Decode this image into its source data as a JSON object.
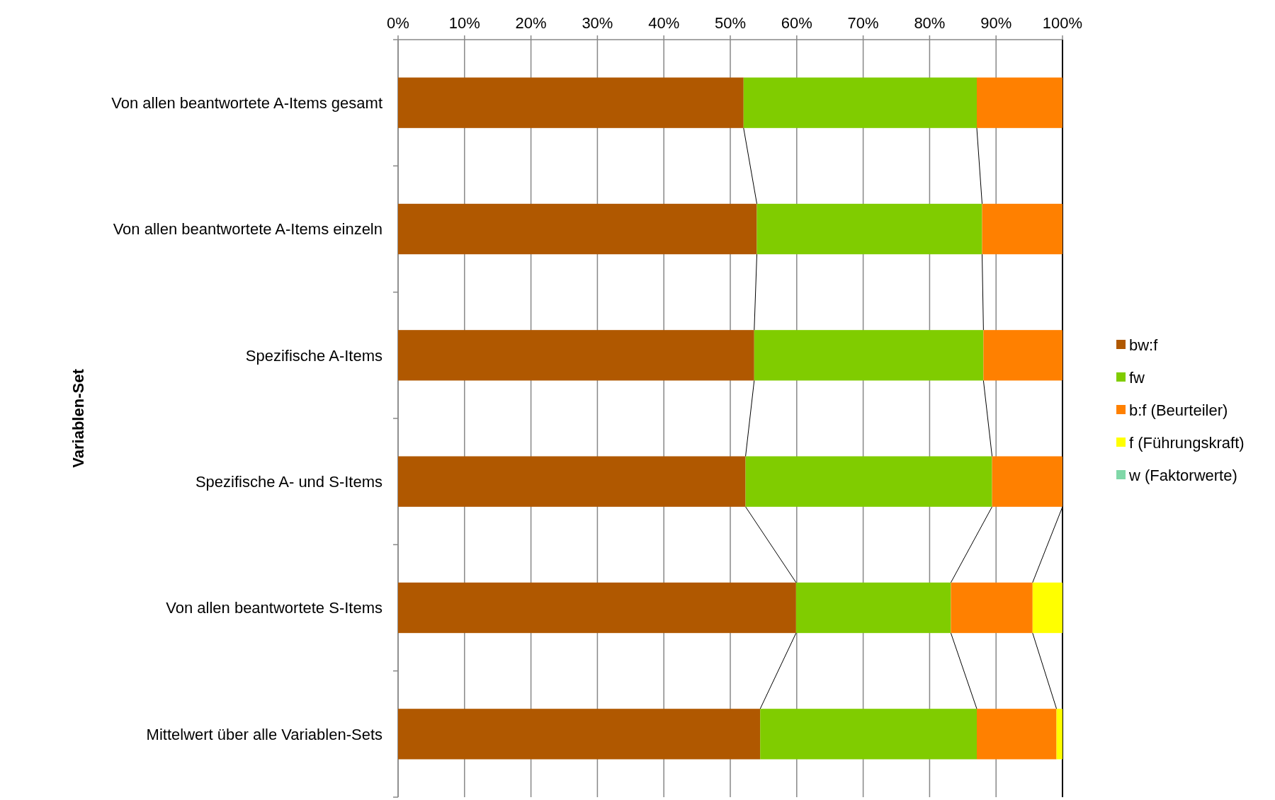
{
  "chart_data": {
    "type": "bar",
    "orientation": "horizontal",
    "stacked": true,
    "ylabel": "Variablen-Set",
    "categories": [
      "Von allen beantwortete A-Items gesamt",
      "Von allen beantwortete A-Items einzeln",
      "Spezifische A-Items",
      "Spezifische A- und S-Items",
      "Von allen beantwortete S-Items",
      "Mittelwert über alle Variablen-Sets"
    ],
    "series": [
      {
        "name": "bw:f",
        "color": "#b05800",
        "values": [
          52.0,
          54.0,
          53.6,
          52.3,
          59.9,
          54.5
        ]
      },
      {
        "name": "fw",
        "color": "#80cc00",
        "values": [
          35.1,
          33.9,
          34.5,
          37.1,
          23.3,
          32.6
        ]
      },
      {
        "name": "b:f (Beurteiler)",
        "color": "#ff8000",
        "values": [
          12.9,
          12.1,
          11.9,
          10.6,
          12.3,
          12.0
        ]
      },
      {
        "name": "f (Führungskraft)",
        "color": "#ffff00",
        "values": [
          0,
          0,
          0,
          0,
          4.5,
          0.9
        ]
      },
      {
        "name": "w (Faktorwerte)",
        "color": "#80d8a8",
        "values": [
          0,
          0,
          0,
          0,
          0,
          0
        ]
      }
    ],
    "xlim": [
      0,
      100
    ],
    "xticks": [
      {
        "value": 0,
        "label": "0%"
      },
      {
        "value": 10,
        "label": "10%"
      },
      {
        "value": 20,
        "label": "20%"
      },
      {
        "value": 30,
        "label": "30%"
      },
      {
        "value": 40,
        "label": "40%"
      },
      {
        "value": 50,
        "label": "50%"
      },
      {
        "value": 60,
        "label": "60%"
      },
      {
        "value": 70,
        "label": "70%"
      },
      {
        "value": 80,
        "label": "80%"
      },
      {
        "value": 90,
        "label": "90%"
      },
      {
        "value": 100,
        "label": "100%"
      }
    ],
    "grid": "x",
    "legend": "right"
  }
}
